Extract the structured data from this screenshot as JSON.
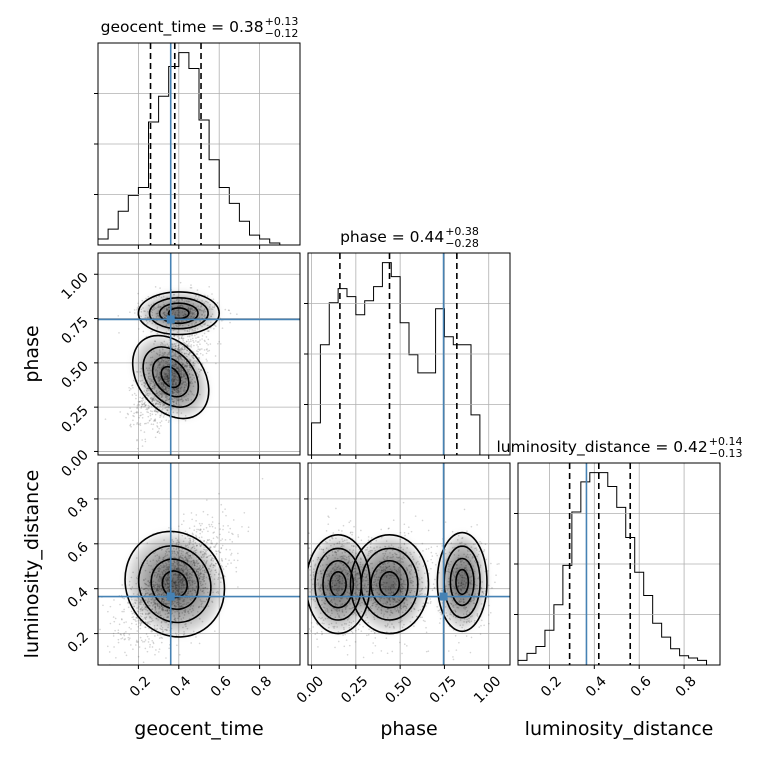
{
  "chart_data": {
    "type": "corner",
    "parameters": [
      "geocent_time",
      "phase",
      "luminosity_distance"
    ],
    "truths": {
      "geocent_time": 0.36,
      "phase": 0.745,
      "luminosity_distance": 0.365
    },
    "truth_color": "#4682b4",
    "titles": [
      {
        "param": "geocent_time",
        "label": "geocent_time = 0.38",
        "plus": "+0.13",
        "minus": "−0.12"
      },
      {
        "param": "phase",
        "label": "phase = 0.44",
        "plus": "+0.38",
        "minus": "−0.28"
      },
      {
        "param": "luminosity_distance",
        "label": "luminosity_distance = 0.42",
        "plus": "+0.14",
        "minus": "−0.13"
      }
    ],
    "quantiles": {
      "geocent_time": [
        0.26,
        0.38,
        0.51
      ],
      "phase": [
        0.16,
        0.44,
        0.82
      ],
      "luminosity_distance": [
        0.29,
        0.42,
        0.56
      ]
    },
    "axes": {
      "geocent_time": {
        "range": [
          0.0,
          1.0
        ],
        "ticks": [
          0.2,
          0.4,
          0.6,
          0.8
        ],
        "tick_labels": [
          "0.2",
          "0.4",
          "0.6",
          "0.8"
        ]
      },
      "phase": {
        "range": [
          -0.02,
          1.12
        ],
        "ticks": [
          0.0,
          0.25,
          0.5,
          0.75,
          1.0
        ],
        "tick_labels": [
          "0.00",
          "0.25",
          "0.50",
          "0.75",
          "1.00"
        ]
      },
      "luminosity_distance": {
        "range": [
          0.06,
          0.96
        ],
        "ticks": [
          0.2,
          0.4,
          0.6,
          0.8
        ],
        "tick_labels": [
          "0.2",
          "0.4",
          "0.6",
          "0.8"
        ]
      }
    },
    "histograms": {
      "geocent_time": {
        "bin_edges": [
          0.0,
          0.05,
          0.1,
          0.15,
          0.2,
          0.25,
          0.3,
          0.35,
          0.4,
          0.45,
          0.5,
          0.55,
          0.6,
          0.65,
          0.7,
          0.75,
          0.8,
          0.85,
          0.9,
          0.95,
          1.0
        ],
        "counts": [
          3,
          8,
          17,
          25,
          29,
          62,
          75,
          90,
          97,
          89,
          63,
          43,
          29,
          21,
          12,
          5,
          3,
          1,
          0,
          0
        ]
      },
      "phase": {
        "bin_edges": [
          0.0,
          0.05,
          0.1,
          0.15,
          0.2,
          0.25,
          0.3,
          0.35,
          0.4,
          0.45,
          0.5,
          0.55,
          0.6,
          0.65,
          0.7,
          0.75,
          0.8,
          0.85,
          0.9,
          0.95,
          1.0,
          1.05
        ],
        "counts": [
          16,
          55,
          76,
          83,
          79,
          70,
          77,
          84,
          96,
          89,
          66,
          50,
          41,
          41,
          73,
          59,
          55,
          55,
          20,
          0,
          0
        ]
      },
      "luminosity_distance": {
        "bin_edges": [
          0.06,
          0.1,
          0.14,
          0.18,
          0.22,
          0.26,
          0.3,
          0.34,
          0.38,
          0.42,
          0.46,
          0.5,
          0.54,
          0.58,
          0.62,
          0.66,
          0.7,
          0.74,
          0.78,
          0.82,
          0.86,
          0.9,
          0.96
        ],
        "counts": [
          2,
          5,
          8,
          15,
          26,
          43,
          66,
          79,
          83,
          83,
          77,
          68,
          55,
          40,
          30,
          18,
          12,
          7,
          4,
          3,
          2,
          0
        ]
      }
    },
    "ylabels": {
      "phase": "phase",
      "luminosity_distance": "luminosity_distance"
    },
    "xlabels": {
      "geocent_time": "geocent_time",
      "phase": "phase",
      "luminosity_distance": "luminosity_distance"
    },
    "grid": true
  }
}
